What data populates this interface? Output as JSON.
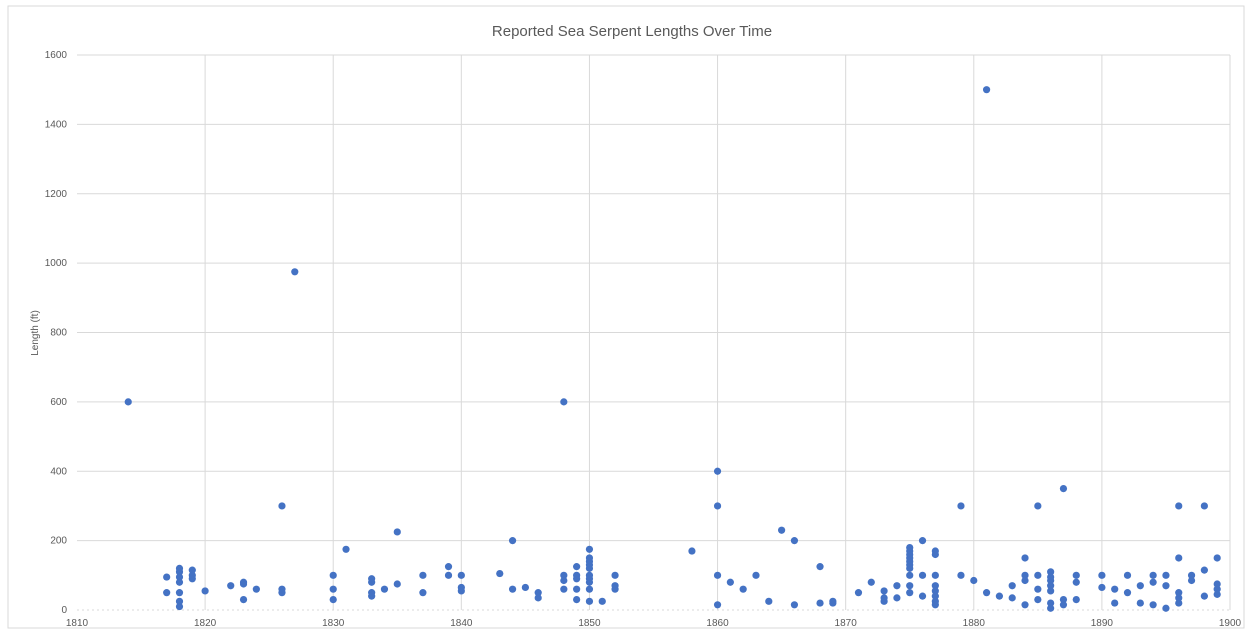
{
  "chart_data": {
    "type": "scatter",
    "title": "Reported Sea Serpent Lengths Over Time",
    "xlabel": "",
    "ylabel": "Length (ft)",
    "xlim": [
      1810,
      1900
    ],
    "ylim": [
      0,
      1600
    ],
    "xticks": [
      1810,
      1820,
      1830,
      1840,
      1850,
      1860,
      1870,
      1880,
      1890,
      1900
    ],
    "yticks": [
      0,
      200,
      400,
      600,
      800,
      1000,
      1200,
      1400,
      1600
    ],
    "grid": true,
    "legend": "none",
    "color": "#4472c4",
    "series": [
      {
        "points": [
          [
            1814,
            600
          ],
          [
            1817,
            95
          ],
          [
            1817,
            50
          ],
          [
            1818,
            120
          ],
          [
            1818,
            110
          ],
          [
            1818,
            95
          ],
          [
            1818,
            80
          ],
          [
            1818,
            50
          ],
          [
            1818,
            25
          ],
          [
            1818,
            10
          ],
          [
            1819,
            115
          ],
          [
            1819,
            100
          ],
          [
            1819,
            90
          ],
          [
            1820,
            55
          ],
          [
            1822,
            70
          ],
          [
            1823,
            80
          ],
          [
            1823,
            75
          ],
          [
            1823,
            30
          ],
          [
            1824,
            60
          ],
          [
            1826,
            300
          ],
          [
            1826,
            60
          ],
          [
            1826,
            50
          ],
          [
            1827,
            975
          ],
          [
            1830,
            100
          ],
          [
            1830,
            60
          ],
          [
            1830,
            30
          ],
          [
            1831,
            175
          ],
          [
            1833,
            90
          ],
          [
            1833,
            80
          ],
          [
            1833,
            50
          ],
          [
            1833,
            40
          ],
          [
            1834,
            60
          ],
          [
            1835,
            225
          ],
          [
            1835,
            75
          ],
          [
            1837,
            100
          ],
          [
            1837,
            50
          ],
          [
            1839,
            125
          ],
          [
            1839,
            100
          ],
          [
            1840,
            100
          ],
          [
            1840,
            65
          ],
          [
            1840,
            55
          ],
          [
            1843,
            105
          ],
          [
            1844,
            200
          ],
          [
            1844,
            60
          ],
          [
            1845,
            65
          ],
          [
            1846,
            50
          ],
          [
            1846,
            35
          ],
          [
            1848,
            600
          ],
          [
            1848,
            100
          ],
          [
            1848,
            85
          ],
          [
            1848,
            60
          ],
          [
            1849,
            125
          ],
          [
            1849,
            100
          ],
          [
            1849,
            90
          ],
          [
            1849,
            60
          ],
          [
            1849,
            30
          ],
          [
            1850,
            175
          ],
          [
            1850,
            150
          ],
          [
            1850,
            140
          ],
          [
            1850,
            130
          ],
          [
            1850,
            120
          ],
          [
            1850,
            100
          ],
          [
            1850,
            90
          ],
          [
            1850,
            80
          ],
          [
            1850,
            60
          ],
          [
            1850,
            25
          ],
          [
            1851,
            25
          ],
          [
            1852,
            100
          ],
          [
            1852,
            70
          ],
          [
            1852,
            60
          ],
          [
            1858,
            170
          ],
          [
            1860,
            400
          ],
          [
            1860,
            300
          ],
          [
            1860,
            100
          ],
          [
            1860,
            15
          ],
          [
            1861,
            80
          ],
          [
            1862,
            60
          ],
          [
            1863,
            100
          ],
          [
            1864,
            25
          ],
          [
            1865,
            230
          ],
          [
            1866,
            200
          ],
          [
            1866,
            15
          ],
          [
            1868,
            125
          ],
          [
            1868,
            20
          ],
          [
            1869,
            25
          ],
          [
            1869,
            20
          ],
          [
            1871,
            50
          ],
          [
            1872,
            80
          ],
          [
            1873,
            55
          ],
          [
            1873,
            35
          ],
          [
            1873,
            25
          ],
          [
            1874,
            70
          ],
          [
            1874,
            35
          ],
          [
            1875,
            180
          ],
          [
            1875,
            170
          ],
          [
            1875,
            160
          ],
          [
            1875,
            150
          ],
          [
            1875,
            140
          ],
          [
            1875,
            130
          ],
          [
            1875,
            120
          ],
          [
            1875,
            100
          ],
          [
            1875,
            70
          ],
          [
            1875,
            50
          ],
          [
            1876,
            200
          ],
          [
            1876,
            100
          ],
          [
            1876,
            40
          ],
          [
            1877,
            170
          ],
          [
            1877,
            160
          ],
          [
            1877,
            100
          ],
          [
            1877,
            70
          ],
          [
            1877,
            55
          ],
          [
            1877,
            40
          ],
          [
            1877,
            25
          ],
          [
            1877,
            15
          ],
          [
            1879,
            300
          ],
          [
            1879,
            100
          ],
          [
            1880,
            85
          ],
          [
            1881,
            1500
          ],
          [
            1881,
            50
          ],
          [
            1882,
            40
          ],
          [
            1883,
            70
          ],
          [
            1883,
            35
          ],
          [
            1884,
            150
          ],
          [
            1884,
            100
          ],
          [
            1884,
            85
          ],
          [
            1884,
            15
          ],
          [
            1885,
            300
          ],
          [
            1885,
            100
          ],
          [
            1885,
            60
          ],
          [
            1885,
            30
          ],
          [
            1886,
            110
          ],
          [
            1886,
            95
          ],
          [
            1886,
            85
          ],
          [
            1886,
            70
          ],
          [
            1886,
            55
          ],
          [
            1886,
            20
          ],
          [
            1886,
            5
          ],
          [
            1887,
            350
          ],
          [
            1887,
            30
          ],
          [
            1887,
            15
          ],
          [
            1888,
            100
          ],
          [
            1888,
            80
          ],
          [
            1888,
            30
          ],
          [
            1890,
            100
          ],
          [
            1890,
            65
          ],
          [
            1891,
            60
          ],
          [
            1891,
            20
          ],
          [
            1892,
            100
          ],
          [
            1892,
            50
          ],
          [
            1893,
            70
          ],
          [
            1893,
            20
          ],
          [
            1894,
            100
          ],
          [
            1894,
            80
          ],
          [
            1894,
            15
          ],
          [
            1895,
            100
          ],
          [
            1895,
            70
          ],
          [
            1895,
            5
          ],
          [
            1896,
            300
          ],
          [
            1896,
            150
          ],
          [
            1896,
            50
          ],
          [
            1896,
            35
          ],
          [
            1896,
            20
          ],
          [
            1897,
            100
          ],
          [
            1897,
            85
          ],
          [
            1898,
            300
          ],
          [
            1898,
            115
          ],
          [
            1898,
            40
          ],
          [
            1899,
            150
          ],
          [
            1899,
            75
          ],
          [
            1899,
            60
          ],
          [
            1899,
            45
          ]
        ]
      }
    ]
  }
}
